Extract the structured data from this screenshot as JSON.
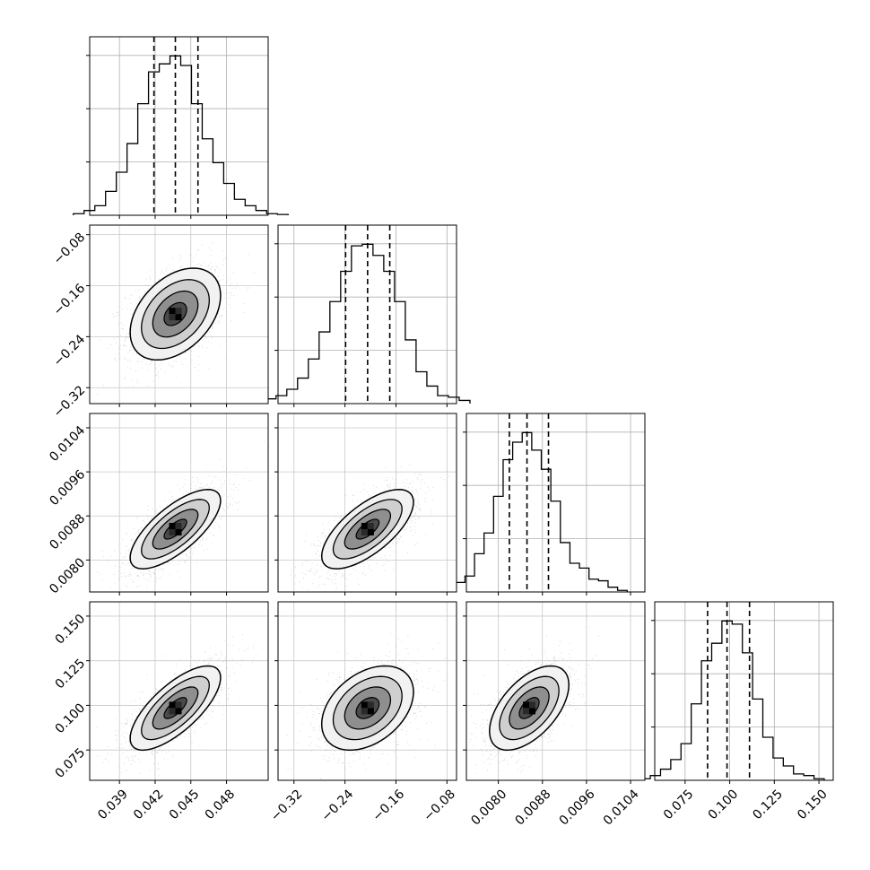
{
  "chart_data": {
    "type": "corner",
    "title": "",
    "grid": true,
    "histogram_color": "#000000",
    "contour_color": "#000000",
    "scatter_color": "#7f7f7f",
    "params": [
      {
        "xlim": [
          0.0365,
          0.0515
        ],
        "ticks": [
          0.039,
          0.042,
          0.045,
          0.048
        ],
        "tick_labels": [
          "0.039",
          "0.042",
          "0.045",
          "0.048"
        ],
        "quantiles": [
          0.0419,
          0.0437,
          0.0456
        ],
        "hist_counts": [
          0.01,
          0.03,
          0.06,
          0.15,
          0.27,
          0.45,
          0.7,
          0.9,
          0.95,
          1.0,
          0.94,
          0.7,
          0.48,
          0.33,
          0.2,
          0.1,
          0.06,
          0.03,
          0.01,
          0.005
        ]
      },
      {
        "xlim": [
          -0.345,
          -0.065
        ],
        "ticks": [
          -0.32,
          -0.24,
          -0.16,
          -0.08
        ],
        "tick_labels": [
          "−0.32",
          "−0.24",
          "−0.16",
          "−0.08"
        ],
        "quantiles": [
          -0.239,
          -0.2045,
          -0.1697
        ],
        "hist_counts": [
          0.03,
          0.05,
          0.09,
          0.16,
          0.28,
          0.45,
          0.64,
          0.83,
          0.99,
          1.0,
          0.93,
          0.83,
          0.64,
          0.4,
          0.2,
          0.11,
          0.05,
          0.04,
          0.02
        ]
      },
      {
        "xlim": [
          0.00742,
          0.01066
        ],
        "ticks": [
          0.008,
          0.0088,
          0.0096,
          0.0104
        ],
        "tick_labels": [
          "0.0080",
          "0.0088",
          "0.0096",
          "0.0104"
        ],
        "quantiles": [
          0.0082,
          0.00852,
          0.00891
        ],
        "hist_counts": [
          0.02,
          0.06,
          0.1,
          0.24,
          0.37,
          0.6,
          0.83,
          0.94,
          1.0,
          0.89,
          0.77,
          0.57,
          0.31,
          0.18,
          0.15,
          0.08,
          0.07,
          0.03,
          0.01
        ]
      },
      {
        "xlim": [
          0.058,
          0.158
        ],
        "ticks": [
          0.075,
          0.1,
          0.125,
          0.15
        ],
        "tick_labels": [
          "0.075",
          "0.100",
          "0.125",
          "0.150"
        ],
        "quantiles": [
          0.0876,
          0.0985,
          0.1111
        ],
        "hist_counts": [
          0.01,
          0.03,
          0.07,
          0.13,
          0.23,
          0.48,
          0.75,
          0.86,
          1.0,
          0.98,
          0.8,
          0.51,
          0.27,
          0.14,
          0.09,
          0.04,
          0.03,
          0.01
        ]
      }
    ],
    "pairs": [
      {
        "x": 0,
        "y": 1,
        "center": [
          0.0437,
          -0.2045
        ],
        "sigma": [
          0.0019,
          0.036
        ],
        "rho": 0.4
      },
      {
        "x": 0,
        "y": 2,
        "center": [
          0.0437,
          0.00856
        ],
        "sigma": [
          0.0019,
          0.00036
        ],
        "rho": 0.72
      },
      {
        "x": 1,
        "y": 2,
        "center": [
          -0.2045,
          0.00856
        ],
        "sigma": [
          0.036,
          0.00036
        ],
        "rho": 0.68
      },
      {
        "x": 0,
        "y": 3,
        "center": [
          0.0437,
          0.0985
        ],
        "sigma": [
          0.0019,
          0.0118
        ],
        "rho": 0.72
      },
      {
        "x": 1,
        "y": 3,
        "center": [
          -0.2045,
          0.0985
        ],
        "sigma": [
          0.036,
          0.0118
        ],
        "rho": 0.38
      },
      {
        "x": 2,
        "y": 3,
        "center": [
          0.00856,
          0.0985
        ],
        "sigma": [
          0.00036,
          0.0118
        ],
        "rho": 0.55
      }
    ]
  }
}
